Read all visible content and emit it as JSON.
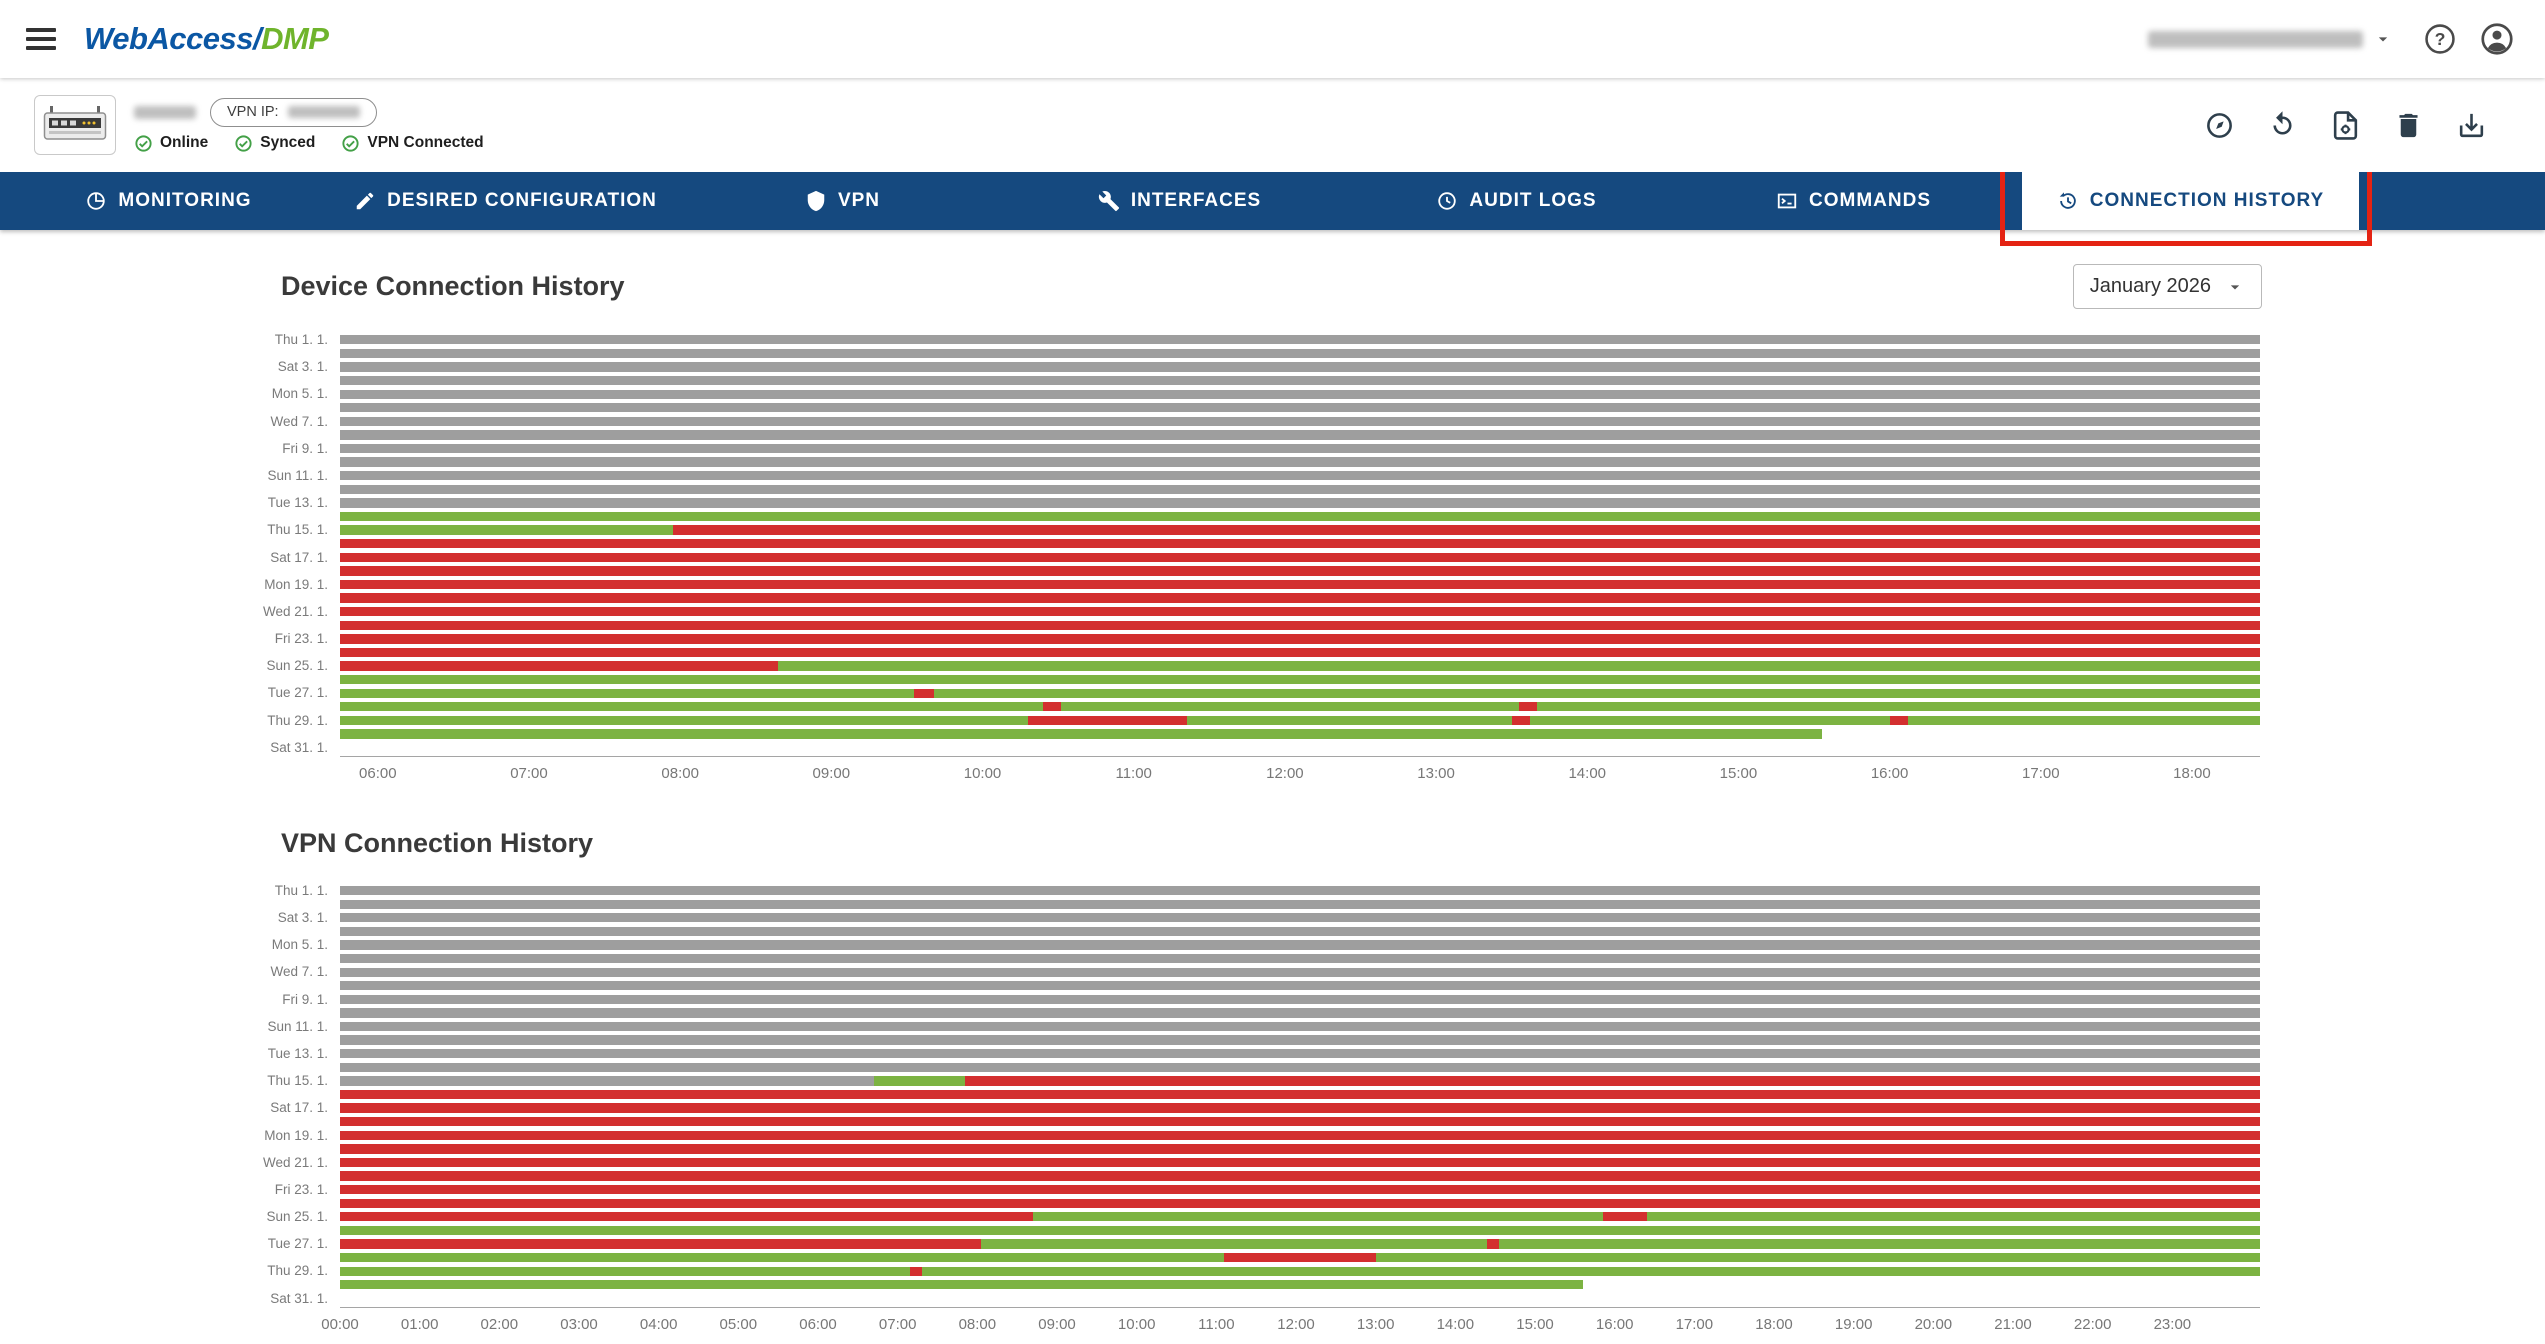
{
  "app": {
    "logo_primary": "WebAccess/",
    "logo_secondary": "DMP"
  },
  "icons": {
    "help_glyph": "?"
  },
  "device": {
    "vpn_ip_label": "VPN IP:",
    "statuses": [
      "Online",
      "Synced",
      "VPN Connected"
    ]
  },
  "nav": {
    "tabs": [
      "MONITORING",
      "DESIRED CONFIGURATION",
      "VPN",
      "INTERFACES",
      "AUDIT LOGS",
      "COMMANDS",
      "CONNECTION HISTORY"
    ],
    "active_tab": "CONNECTION HISTORY"
  },
  "controls": {
    "month": "January 2026"
  },
  "colors": {
    "nav_blue": "#15497f",
    "logo_blue": "#0b57a4",
    "logo_green": "#6fb42c",
    "status_green": "#43a047",
    "annotation_red": "#e42313"
  },
  "chart_data": [
    {
      "type": "bar",
      "subtype": "timeline",
      "title": "Device Connection History",
      "legend": "none",
      "colors": {
        "nodata": "#9e9e9e",
        "up": "#7cb342",
        "down": "#d32f2f"
      },
      "x_axis": {
        "domain": [
          5.75,
          18.45
        ],
        "tick_hours": [
          6,
          7,
          8,
          9,
          10,
          11,
          12,
          13,
          14,
          15,
          16,
          17,
          18
        ],
        "tick_labels": [
          "06:00",
          "07:00",
          "08:00",
          "09:00",
          "10:00",
          "11:00",
          "12:00",
          "13:00",
          "14:00",
          "15:00",
          "16:00",
          "17:00",
          "18:00"
        ]
      },
      "days": [
        {
          "label": "Thu 1. 1.",
          "segments": [
            [
              5.75,
              18.45,
              "nodata"
            ]
          ]
        },
        {
          "label": "",
          "segments": [
            [
              5.75,
              18.45,
              "nodata"
            ]
          ]
        },
        {
          "label": "Sat 3. 1.",
          "segments": [
            [
              5.75,
              18.45,
              "nodata"
            ]
          ]
        },
        {
          "label": "",
          "segments": [
            [
              5.75,
              18.45,
              "nodata"
            ]
          ]
        },
        {
          "label": "Mon 5. 1.",
          "segments": [
            [
              5.75,
              18.45,
              "nodata"
            ]
          ]
        },
        {
          "label": "",
          "segments": [
            [
              5.75,
              18.45,
              "nodata"
            ]
          ]
        },
        {
          "label": "Wed 7. 1.",
          "segments": [
            [
              5.75,
              18.45,
              "nodata"
            ]
          ]
        },
        {
          "label": "",
          "segments": [
            [
              5.75,
              18.45,
              "nodata"
            ]
          ]
        },
        {
          "label": "Fri 9. 1.",
          "segments": [
            [
              5.75,
              18.45,
              "nodata"
            ]
          ]
        },
        {
          "label": "",
          "segments": [
            [
              5.75,
              18.45,
              "nodata"
            ]
          ]
        },
        {
          "label": "Sun 11. 1.",
          "segments": [
            [
              5.75,
              18.45,
              "nodata"
            ]
          ]
        },
        {
          "label": "",
          "segments": [
            [
              5.75,
              18.45,
              "nodata"
            ]
          ]
        },
        {
          "label": "Tue 13. 1.",
          "segments": [
            [
              5.75,
              18.45,
              "nodata"
            ]
          ]
        },
        {
          "label": "",
          "segments": [
            [
              5.75,
              18.45,
              "up"
            ]
          ]
        },
        {
          "label": "Thu 15. 1.",
          "segments": [
            [
              5.75,
              7.95,
              "up"
            ],
            [
              7.95,
              18.45,
              "down"
            ]
          ]
        },
        {
          "label": "",
          "segments": [
            [
              5.75,
              18.45,
              "down"
            ]
          ]
        },
        {
          "label": "Sat 17. 1.",
          "segments": [
            [
              5.75,
              18.45,
              "down"
            ]
          ]
        },
        {
          "label": "",
          "segments": [
            [
              5.75,
              18.45,
              "down"
            ]
          ]
        },
        {
          "label": "Mon 19. 1.",
          "segments": [
            [
              5.75,
              18.45,
              "down"
            ]
          ]
        },
        {
          "label": "",
          "segments": [
            [
              5.75,
              18.45,
              "down"
            ]
          ]
        },
        {
          "label": "Wed 21. 1.",
          "segments": [
            [
              5.75,
              18.45,
              "down"
            ]
          ]
        },
        {
          "label": "",
          "segments": [
            [
              5.75,
              18.45,
              "down"
            ]
          ]
        },
        {
          "label": "Fri 23. 1.",
          "segments": [
            [
              5.75,
              18.45,
              "down"
            ]
          ]
        },
        {
          "label": "",
          "segments": [
            [
              5.75,
              18.45,
              "down"
            ]
          ]
        },
        {
          "label": "Sun 25. 1.",
          "segments": [
            [
              5.75,
              8.65,
              "down"
            ],
            [
              8.65,
              18.45,
              "up"
            ]
          ]
        },
        {
          "label": "",
          "segments": [
            [
              5.75,
              18.45,
              "up"
            ]
          ]
        },
        {
          "label": "Tue 27. 1.",
          "segments": [
            [
              5.75,
              9.55,
              "up"
            ],
            [
              9.55,
              9.68,
              "down"
            ],
            [
              9.68,
              18.45,
              "up"
            ]
          ]
        },
        {
          "label": "",
          "segments": [
            [
              5.75,
              10.4,
              "up"
            ],
            [
              10.4,
              10.52,
              "down"
            ],
            [
              10.52,
              13.55,
              "up"
            ],
            [
              13.55,
              13.67,
              "down"
            ],
            [
              13.67,
              18.45,
              "up"
            ]
          ]
        },
        {
          "label": "Thu 29. 1.",
          "segments": [
            [
              5.75,
              10.3,
              "up"
            ],
            [
              10.3,
              11.35,
              "down"
            ],
            [
              11.35,
              13.5,
              "up"
            ],
            [
              13.5,
              13.62,
              "down"
            ],
            [
              13.62,
              16.0,
              "up"
            ],
            [
              16.0,
              16.12,
              "down"
            ],
            [
              16.12,
              18.45,
              "up"
            ]
          ]
        },
        {
          "label": "",
          "segments": [
            [
              5.75,
              15.55,
              "up"
            ]
          ]
        },
        {
          "label": "Sat 31. 1.",
          "segments": []
        }
      ]
    },
    {
      "type": "bar",
      "subtype": "timeline",
      "title": "VPN Connection History",
      "legend": "none",
      "colors": {
        "nodata": "#9e9e9e",
        "up": "#7cb342",
        "down": "#d32f2f"
      },
      "x_axis": {
        "domain": [
          0,
          24.1
        ],
        "tick_hours": [
          0,
          1,
          2,
          3,
          4,
          5,
          6,
          7,
          8,
          9,
          10,
          11,
          12,
          13,
          14,
          15,
          16,
          17,
          18,
          19,
          20,
          21,
          22,
          23
        ],
        "tick_labels": [
          "00:00",
          "01:00",
          "02:00",
          "03:00",
          "04:00",
          "05:00",
          "06:00",
          "07:00",
          "08:00",
          "09:00",
          "10:00",
          "11:00",
          "12:00",
          "13:00",
          "14:00",
          "15:00",
          "16:00",
          "17:00",
          "18:00",
          "19:00",
          "20:00",
          "21:00",
          "22:00",
          "23:00"
        ]
      },
      "days": [
        {
          "label": "Thu 1. 1.",
          "segments": [
            [
              0,
              24.1,
              "nodata"
            ]
          ]
        },
        {
          "label": "",
          "segments": [
            [
              0,
              24.1,
              "nodata"
            ]
          ]
        },
        {
          "label": "Sat 3. 1.",
          "segments": [
            [
              0,
              24.1,
              "nodata"
            ]
          ]
        },
        {
          "label": "",
          "segments": [
            [
              0,
              24.1,
              "nodata"
            ]
          ]
        },
        {
          "label": "Mon 5. 1.",
          "segments": [
            [
              0,
              24.1,
              "nodata"
            ]
          ]
        },
        {
          "label": "",
          "segments": [
            [
              0,
              24.1,
              "nodata"
            ]
          ]
        },
        {
          "label": "Wed 7. 1.",
          "segments": [
            [
              0,
              24.1,
              "nodata"
            ]
          ]
        },
        {
          "label": "",
          "segments": [
            [
              0,
              24.1,
              "nodata"
            ]
          ]
        },
        {
          "label": "Fri 9. 1.",
          "segments": [
            [
              0,
              24.1,
              "nodata"
            ]
          ]
        },
        {
          "label": "",
          "segments": [
            [
              0,
              24.1,
              "nodata"
            ]
          ]
        },
        {
          "label": "Sun 11. 1.",
          "segments": [
            [
              0,
              24.1,
              "nodata"
            ]
          ]
        },
        {
          "label": "",
          "segments": [
            [
              0,
              24.1,
              "nodata"
            ]
          ]
        },
        {
          "label": "Tue 13. 1.",
          "segments": [
            [
              0,
              24.1,
              "nodata"
            ]
          ]
        },
        {
          "label": "",
          "segments": [
            [
              0,
              24.1,
              "nodata"
            ]
          ]
        },
        {
          "label": "Thu 15. 1.",
          "segments": [
            [
              0,
              6.7,
              "nodata"
            ],
            [
              6.7,
              7.85,
              "up"
            ],
            [
              7.85,
              24.1,
              "down"
            ]
          ]
        },
        {
          "label": "",
          "segments": [
            [
              0,
              24.1,
              "down"
            ]
          ]
        },
        {
          "label": "Sat 17. 1.",
          "segments": [
            [
              0,
              24.1,
              "down"
            ]
          ]
        },
        {
          "label": "",
          "segments": [
            [
              0,
              24.1,
              "down"
            ]
          ]
        },
        {
          "label": "Mon 19. 1.",
          "segments": [
            [
              0,
              24.1,
              "down"
            ]
          ]
        },
        {
          "label": "",
          "segments": [
            [
              0,
              24.1,
              "down"
            ]
          ]
        },
        {
          "label": "Wed 21. 1.",
          "segments": [
            [
              0,
              24.1,
              "down"
            ]
          ]
        },
        {
          "label": "",
          "segments": [
            [
              0,
              24.1,
              "down"
            ]
          ]
        },
        {
          "label": "Fri 23. 1.",
          "segments": [
            [
              0,
              24.1,
              "down"
            ]
          ]
        },
        {
          "label": "",
          "segments": [
            [
              0,
              24.1,
              "down"
            ]
          ]
        },
        {
          "label": "Sun 25. 1.",
          "segments": [
            [
              0,
              8.7,
              "down"
            ],
            [
              8.7,
              15.85,
              "up"
            ],
            [
              15.85,
              16.4,
              "down"
            ],
            [
              16.4,
              24.1,
              "up"
            ]
          ]
        },
        {
          "label": "",
          "segments": [
            [
              0,
              24.1,
              "up"
            ]
          ]
        },
        {
          "label": "Tue 27. 1.",
          "segments": [
            [
              0,
              8.05,
              "down"
            ],
            [
              8.05,
              14.4,
              "up"
            ],
            [
              14.4,
              14.55,
              "down"
            ],
            [
              14.55,
              24.1,
              "up"
            ]
          ]
        },
        {
          "label": "",
          "segments": [
            [
              0,
              11.1,
              "up"
            ],
            [
              11.1,
              13.0,
              "down"
            ],
            [
              13.0,
              24.1,
              "up"
            ]
          ]
        },
        {
          "label": "Thu 29. 1.",
          "segments": [
            [
              0,
              7.15,
              "up"
            ],
            [
              7.15,
              7.3,
              "down"
            ],
            [
              7.3,
              24.1,
              "up"
            ]
          ]
        },
        {
          "label": "",
          "segments": [
            [
              0,
              15.6,
              "up"
            ]
          ]
        },
        {
          "label": "Sat 31. 1.",
          "segments": []
        }
      ]
    }
  ]
}
